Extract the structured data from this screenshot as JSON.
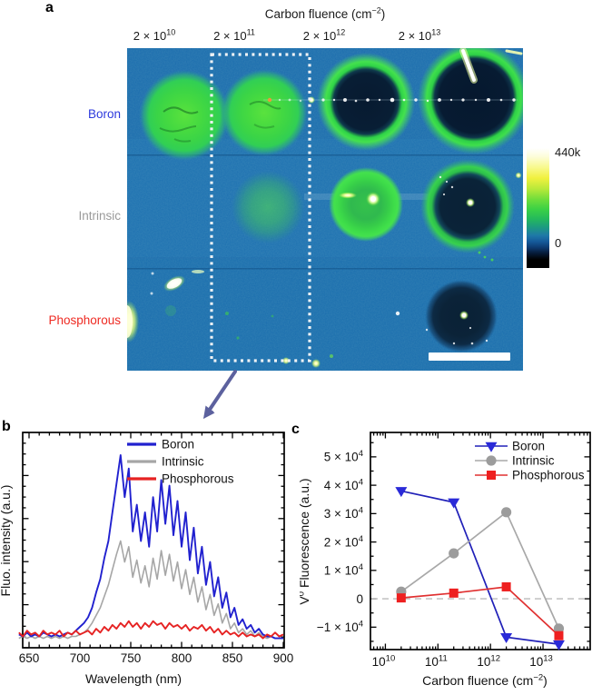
{
  "figure": {
    "panel_a_label": "a",
    "panel_b_label": "b",
    "panel_c_label": "c"
  },
  "panel_a": {
    "title": {
      "pre": "Carbon fluence (cm",
      "sup": "−2",
      "post": ")"
    },
    "column_labels": [
      {
        "base": "2 × 10",
        "exp": "10"
      },
      {
        "base": "2 × 10",
        "exp": "11"
      },
      {
        "base": "2 × 10",
        "exp": "12"
      },
      {
        "base": "2 × 10",
        "exp": "13"
      }
    ],
    "row_labels": [
      {
        "label": "Boron",
        "color": "#2b38dd"
      },
      {
        "label": "Intrinsic",
        "color": "#9a9a9a"
      },
      {
        "label": "Phosphorous",
        "color": "#ee2a22"
      }
    ],
    "colorbar": {
      "max_label": "440k",
      "min_label": "0"
    }
  },
  "colors": {
    "background_blue": "#1a6cae",
    "arrow": "#5c619e"
  },
  "chart_data": [
    {
      "panel": "b",
      "type": "line",
      "xlabel": "Wavelength (nm)",
      "ylabel": "Fluo. intensity (a.u.)",
      "xlim": [
        644,
        901
      ],
      "xticks": [
        650,
        700,
        750,
        800,
        850,
        900
      ],
      "yticks_labeled": false,
      "legend_position": "top-right-inside",
      "wavelengths": [
        640,
        644,
        648,
        652,
        656,
        660,
        664,
        668,
        672,
        676,
        680,
        684,
        688,
        692,
        696,
        700,
        704,
        708,
        712,
        716,
        720,
        724,
        728,
        732,
        736,
        740,
        744,
        748,
        752,
        756,
        760,
        764,
        768,
        772,
        776,
        780,
        784,
        788,
        792,
        796,
        800,
        804,
        808,
        812,
        816,
        820,
        824,
        828,
        832,
        836,
        840,
        844,
        848,
        852,
        856,
        860,
        864,
        868,
        872,
        876,
        880,
        884,
        888,
        892,
        896,
        900
      ],
      "intensity_normalized": true,
      "series": [
        {
          "name": "Boron",
          "color": "#2121cf",
          "values": [
            0.06,
            0.05,
            0.07,
            0.05,
            0.06,
            0.05,
            0.07,
            0.06,
            0.05,
            0.06,
            0.05,
            0.06,
            0.07,
            0.06,
            0.08,
            0.1,
            0.12,
            0.15,
            0.2,
            0.28,
            0.35,
            0.46,
            0.55,
            0.7,
            0.85,
            1.0,
            0.78,
            0.93,
            0.6,
            0.74,
            0.55,
            0.7,
            0.52,
            0.78,
            0.6,
            0.87,
            0.64,
            0.84,
            0.58,
            0.76,
            0.52,
            0.7,
            0.45,
            0.62,
            0.38,
            0.52,
            0.32,
            0.44,
            0.26,
            0.36,
            0.2,
            0.28,
            0.15,
            0.2,
            0.11,
            0.14,
            0.09,
            0.11,
            0.07,
            0.09,
            0.06,
            0.05,
            0.05,
            0.04,
            0.04,
            0.04
          ]
        },
        {
          "name": "Intrinsic",
          "color": "#a6a6a6",
          "values": [
            0.04,
            0.05,
            0.04,
            0.05,
            0.04,
            0.05,
            0.04,
            0.05,
            0.04,
            0.05,
            0.04,
            0.05,
            0.04,
            0.05,
            0.05,
            0.06,
            0.07,
            0.09,
            0.12,
            0.16,
            0.2,
            0.26,
            0.32,
            0.4,
            0.48,
            0.55,
            0.44,
            0.52,
            0.36,
            0.45,
            0.33,
            0.42,
            0.31,
            0.46,
            0.35,
            0.5,
            0.37,
            0.48,
            0.34,
            0.44,
            0.3,
            0.4,
            0.27,
            0.36,
            0.23,
            0.31,
            0.19,
            0.27,
            0.16,
            0.22,
            0.12,
            0.17,
            0.09,
            0.12,
            0.07,
            0.09,
            0.06,
            0.08,
            0.05,
            0.07,
            0.05,
            0.04,
            0.05,
            0.04,
            0.04,
            0.04
          ]
        },
        {
          "name": "Phosphorous",
          "color": "#e62222",
          "values": [
            0.07,
            0.05,
            0.08,
            0.06,
            0.07,
            0.05,
            0.08,
            0.06,
            0.07,
            0.06,
            0.08,
            0.05,
            0.07,
            0.06,
            0.08,
            0.06,
            0.07,
            0.08,
            0.06,
            0.09,
            0.07,
            0.1,
            0.08,
            0.11,
            0.09,
            0.12,
            0.1,
            0.13,
            0.1,
            0.12,
            0.09,
            0.12,
            0.1,
            0.13,
            0.11,
            0.12,
            0.09,
            0.12,
            0.1,
            0.11,
            0.09,
            0.11,
            0.08,
            0.1,
            0.09,
            0.11,
            0.08,
            0.1,
            0.07,
            0.09,
            0.06,
            0.08,
            0.06,
            0.07,
            0.05,
            0.07,
            0.05,
            0.06,
            0.05,
            0.06,
            0.04,
            0.06,
            0.05,
            0.07,
            0.05,
            0.06
          ]
        }
      ]
    },
    {
      "panel": "c",
      "type": "scatter-line",
      "xscale": "log",
      "xlabel": {
        "pre": "Carbon fluence (cm",
        "sup": "−2",
        "post": ")"
      },
      "ylabel": {
        "pre": "V",
        "sup": "0",
        "post": " Fluorescence (a.u.)"
      },
      "xlim": [
        5200000000.0,
        79000000000000.0
      ],
      "ylim": [
        -17900,
        58600
      ],
      "xticks": [
        {
          "value": 10000000000.0,
          "base": "10",
          "exp": "10"
        },
        {
          "value": 100000000000.0,
          "base": "10",
          "exp": "11"
        },
        {
          "value": 1000000000000.0,
          "base": "10",
          "exp": "12"
        },
        {
          "value": 10000000000000.0,
          "base": "10",
          "exp": "13"
        }
      ],
      "yticks": [
        {
          "value": 50000,
          "base": "5 × 10",
          "exp": "4"
        },
        {
          "value": 40000,
          "base": "4 × 10",
          "exp": "4"
        },
        {
          "value": 30000,
          "base": "3 × 10",
          "exp": "4"
        },
        {
          "value": 20000,
          "base": "2 × 10",
          "exp": "4"
        },
        {
          "value": 10000,
          "base": "1 × 10",
          "exp": "4"
        },
        {
          "value": 0,
          "label": "0"
        },
        {
          "value": -10000,
          "base": "−1 × 10",
          "exp": "4"
        }
      ],
      "zero_dashed_line": true,
      "legend_position": "top-right-inside",
      "x_values": [
        20000000000.0,
        200000000000.0,
        2000000000000.0,
        20000000000000.0
      ],
      "series": [
        {
          "name": "Boron",
          "marker": "triangle-down",
          "line_color": "#2020b8",
          "color": "#2a2ad8",
          "values": [
            38000,
            34000,
            -13500,
            -16000
          ]
        },
        {
          "name": "Intrinsic",
          "marker": "circle",
          "line_color": "#a8a8a8",
          "color": "#9c9c9c",
          "values": [
            2500,
            16000,
            30500,
            -10500
          ]
        },
        {
          "name": "Phosphorous",
          "marker": "square",
          "line_color": "#e03030",
          "color": "#ee2020",
          "values": [
            300,
            2000,
            4200,
            -13000
          ]
        }
      ]
    }
  ]
}
